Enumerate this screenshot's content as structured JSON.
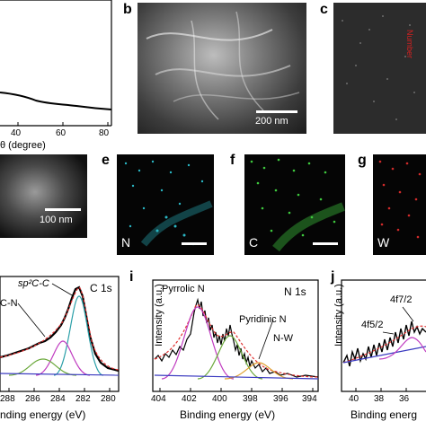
{
  "panels": {
    "a": {
      "xlabel": "θ (degree)",
      "xticks": [
        "40",
        "60",
        "80"
      ]
    },
    "b": {
      "letter": "b",
      "scalebar_label": "200 nm"
    },
    "c": {
      "letter": "c",
      "overlay_text": "Number"
    },
    "d": {
      "scalebar_label": "100 nm"
    },
    "e": {
      "letter": "e",
      "element": "N",
      "color": "#2ab7c4"
    },
    "f": {
      "letter": "f",
      "element": "C",
      "color": "#3ec93e"
    },
    "g": {
      "letter": "g",
      "element": "W",
      "color": "#d02a2a"
    },
    "h": {
      "title": "C 1s",
      "peaks": [
        "sp²C-C",
        "C-N"
      ],
      "xticks": [
        "288",
        "286",
        "284",
        "282",
        "280"
      ],
      "xlabel": "nding energy (eV)"
    },
    "i": {
      "letter": "i",
      "title": "N 1s",
      "peaks": [
        "Pyrrolic N",
        "Pyridinic N",
        "N-W"
      ],
      "xticks": [
        "404",
        "402",
        "400",
        "398",
        "396",
        "394"
      ],
      "xlabel": "Binding energy (eV)",
      "ylabel": "Intensity (a.u.)"
    },
    "j": {
      "letter": "j",
      "peaks": [
        "4f7/2",
        "4f5/2"
      ],
      "xticks": [
        "40",
        "38",
        "36"
      ],
      "xlabel": "Binding energ",
      "ylabel": "Intensity (a.u.)"
    }
  }
}
